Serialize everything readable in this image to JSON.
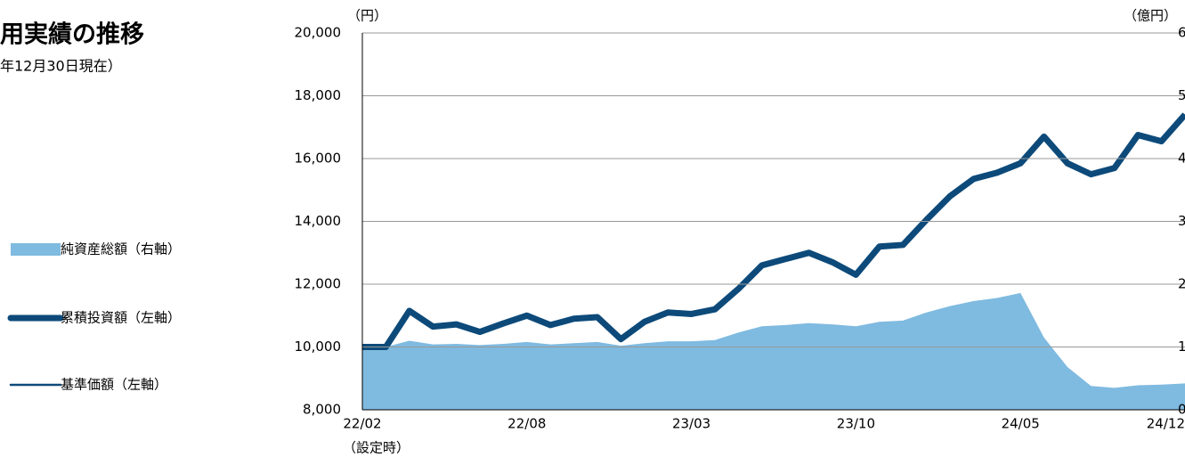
{
  "chart_data": {
    "type": "line",
    "title": "用実績の推移",
    "subtitle": "年12月30日現在）",
    "y_unit": "（円）",
    "y2_unit": "（億円）",
    "x_note": "（設定時）",
    "categories": [
      "22/02",
      null,
      null,
      null,
      null,
      null,
      null,
      "22/08",
      null,
      null,
      null,
      null,
      null,
      null,
      "23/03",
      null,
      null,
      null,
      null,
      null,
      null,
      "23/10",
      null,
      null,
      null,
      null,
      null,
      null,
      "24/05",
      null,
      null,
      null,
      null,
      null,
      null,
      "24/12"
    ],
    "ylim": [
      8000,
      20000
    ],
    "yticks": [
      {
        "value": 8000,
        "label": "8,000"
      },
      {
        "value": 10000,
        "label": "10,000"
      },
      {
        "value": 12000,
        "label": "12,000"
      },
      {
        "value": 14000,
        "label": "14,000"
      },
      {
        "value": 16000,
        "label": "16,000"
      },
      {
        "value": 18000,
        "label": "18,000"
      },
      {
        "value": 20000,
        "label": "20,000"
      }
    ],
    "y2lim": [
      0,
      6
    ],
    "y2ticks": [
      0,
      1,
      2,
      3,
      4,
      5,
      6
    ],
    "grid": true,
    "series": [
      {
        "name": "純資産総額（右軸）",
        "kind": "area",
        "axis": "y2",
        "color": "#7fbae0",
        "values": [
          1.0,
          1.0,
          1.1,
          1.04,
          1.05,
          1.03,
          1.05,
          1.08,
          1.04,
          1.06,
          1.08,
          1.02,
          1.06,
          1.09,
          1.09,
          1.11,
          1.23,
          1.33,
          1.35,
          1.38,
          1.36,
          1.33,
          1.4,
          1.42,
          1.55,
          1.65,
          1.73,
          1.78,
          1.86,
          1.15,
          0.68,
          0.38,
          0.35,
          0.39,
          0.4,
          0.42
        ]
      },
      {
        "name": "累積投資額（左軸）",
        "kind": "line",
        "width": 7,
        "color": "#0d4a7a",
        "values": [
          10000,
          10000,
          11150,
          10650,
          10720,
          10480,
          10750,
          11000,
          10700,
          10900,
          10950,
          10250,
          10800,
          11100,
          11050,
          11200,
          11850,
          12600,
          12800,
          13000,
          12700,
          12300,
          13200,
          13250,
          14050,
          14800,
          15350,
          15550,
          15850,
          16700,
          15850,
          15500,
          15700,
          16750,
          16550,
          17400
        ]
      },
      {
        "name": "基準価額（左軸）",
        "kind": "line",
        "width": 2.5,
        "color": "#0d4a7a",
        "values": [
          10000,
          10000,
          11150,
          10650,
          10720,
          10480,
          10750,
          11000,
          10700,
          10900,
          10950,
          10250,
          10800,
          11100,
          11050,
          11200,
          11850,
          12600,
          12800,
          13000,
          12700,
          12300,
          13200,
          13250,
          14050,
          14800,
          15350,
          15550,
          15850,
          16700,
          15850,
          15500,
          15700,
          16750,
          16550,
          17400
        ]
      }
    ]
  }
}
